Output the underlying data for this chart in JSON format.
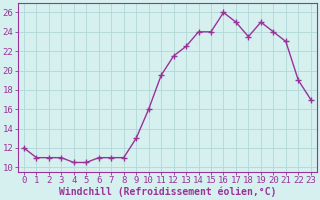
{
  "x": [
    0,
    1,
    2,
    3,
    4,
    5,
    6,
    7,
    8,
    9,
    10,
    11,
    12,
    13,
    14,
    15,
    16,
    17,
    18,
    19,
    20,
    21,
    22,
    23
  ],
  "y": [
    12,
    11,
    11,
    11,
    10.5,
    10.5,
    11,
    11,
    11,
    13,
    16,
    19.5,
    21.5,
    22.5,
    24,
    24,
    26,
    25,
    23.5,
    25,
    24,
    23,
    19,
    17
  ],
  "line_color": "#993399",
  "marker": "+",
  "marker_size": 4,
  "background_color": "#d6f0f0",
  "grid_color": "#b0d8d8",
  "ylabel_ticks": [
    10,
    12,
    14,
    16,
    18,
    20,
    22,
    24,
    26
  ],
  "ylim": [
    9.5,
    27
  ],
  "xlim": [
    -0.5,
    23.5
  ],
  "xlabel": "Windchill (Refroidissement éolien,°C)",
  "xlabel_fontsize": 7,
  "tick_fontsize": 6.5,
  "line_width": 1.0
}
